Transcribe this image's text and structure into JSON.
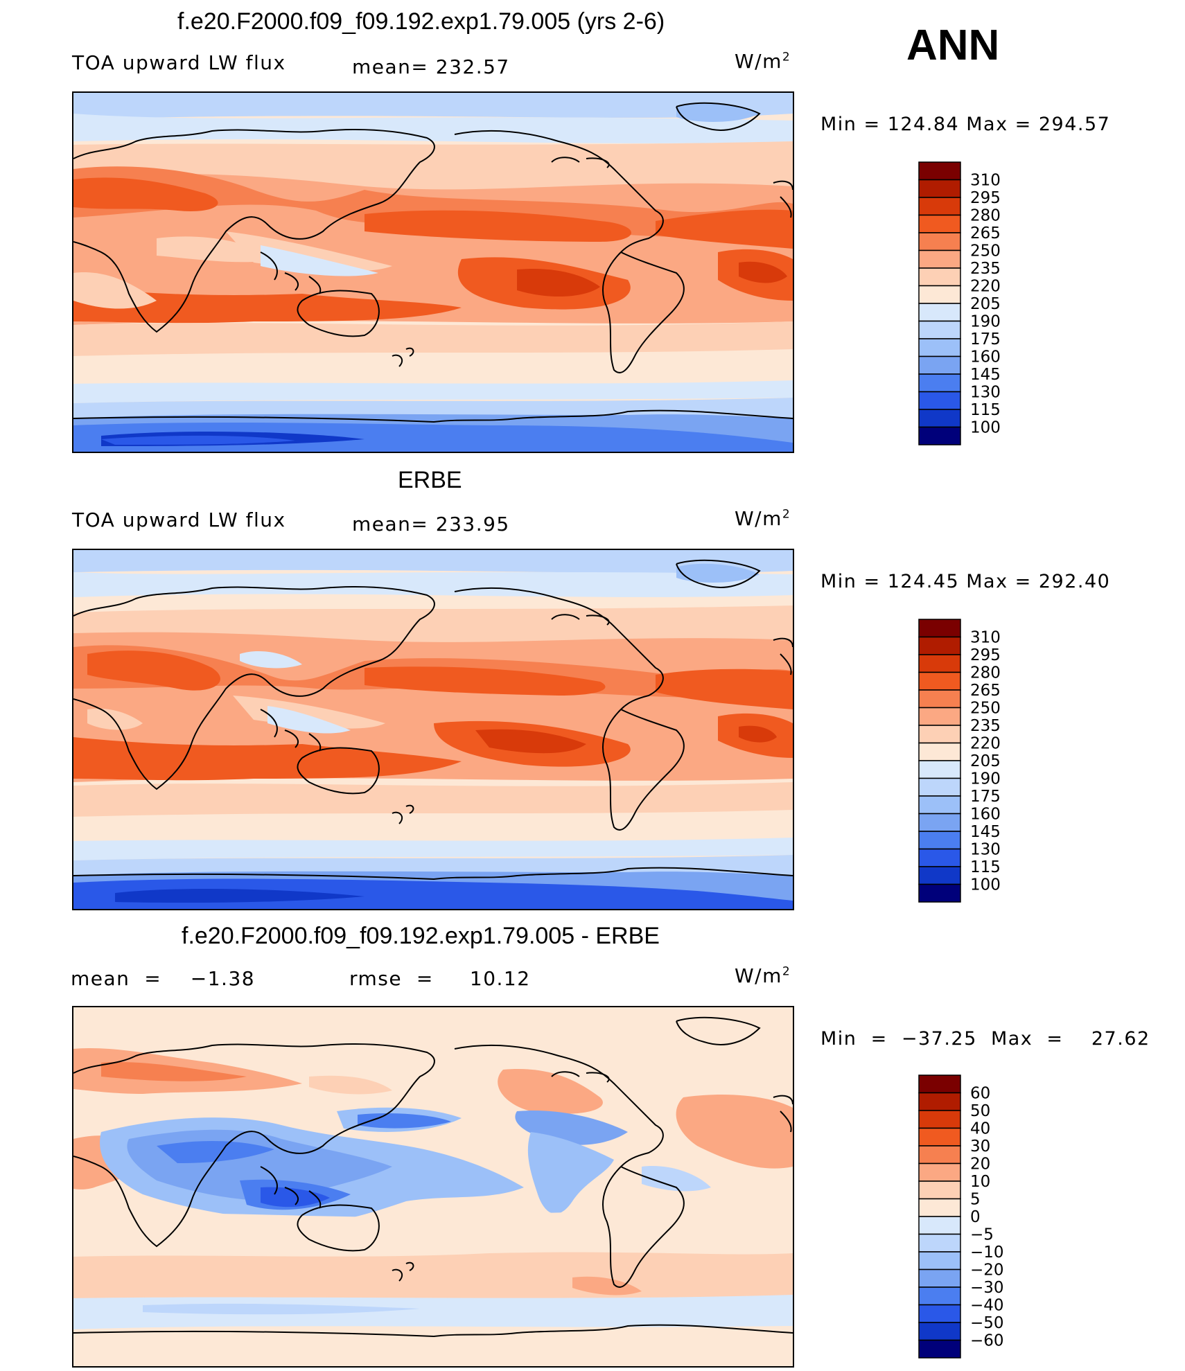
{
  "season": "ANN",
  "chart_data": [
    {
      "type": "heatmap",
      "title": "f.e20.F2000.f09_f09.192.exp1.79.005 (yrs 2-6)",
      "left_label": "TOA upward LW flux",
      "center_label": "mean=  232.57",
      "units_base": "W/m",
      "units_exp": "2",
      "minmax": "Min  =  124.84  Max  =  294.57",
      "mean": 232.57,
      "min": 124.84,
      "max": 294.57,
      "levels": [
        "310",
        "295",
        "280",
        "265",
        "250",
        "235",
        "220",
        "205",
        "190",
        "175",
        "160",
        "145",
        "130",
        "115",
        "100"
      ],
      "colors": [
        "#7a0000",
        "#b01c00",
        "#d83a0a",
        "#f05a20",
        "#f68050",
        "#fba883",
        "#fdd0b5",
        "#fde8d6",
        "#d8e8fb",
        "#bdd6fb",
        "#9cc0f8",
        "#7aa4f2",
        "#4b7ef0",
        "#2a58e8",
        "#1038c8",
        "#00007a"
      ]
    },
    {
      "type": "heatmap",
      "title": "ERBE",
      "left_label": "TOA upward LW flux",
      "center_label": "mean=  233.95",
      "units_base": "W/m",
      "units_exp": "2",
      "minmax": "Min  =  124.45  Max  =  292.40",
      "mean": 233.95,
      "min": 124.45,
      "max": 292.4,
      "levels": [
        "310",
        "295",
        "280",
        "265",
        "250",
        "235",
        "220",
        "205",
        "190",
        "175",
        "160",
        "145",
        "130",
        "115",
        "100"
      ],
      "colors": [
        "#7a0000",
        "#b01c00",
        "#d83a0a",
        "#f05a20",
        "#f68050",
        "#fba883",
        "#fdd0b5",
        "#fde8d6",
        "#d8e8fb",
        "#bdd6fb",
        "#9cc0f8",
        "#7aa4f2",
        "#4b7ef0",
        "#2a58e8",
        "#1038c8",
        "#00007a"
      ]
    },
    {
      "type": "heatmap",
      "title": "f.e20.F2000.f09_f09.192.exp1.79.005 - ERBE",
      "left_label": "mean  =    −1.38",
      "center_label": "rmse  =     10.12",
      "units_base": "W/m",
      "units_exp": "2",
      "minmax": "Min  =  −37.25  Max  =    27.62",
      "mean": -1.38,
      "rmse": 10.12,
      "min": -37.25,
      "max": 27.62,
      "levels": [
        "60",
        "50",
        "40",
        "30",
        "20",
        "10",
        "5",
        "0",
        "−5",
        "−10",
        "−20",
        "−30",
        "−40",
        "−50",
        "−60"
      ],
      "colors": [
        "#7a0000",
        "#b01c00",
        "#d83a0a",
        "#f05a20",
        "#f68050",
        "#fba883",
        "#fdd0b5",
        "#fde8d6",
        "#d8e8fb",
        "#bdd6fb",
        "#9cc0f8",
        "#7aa4f2",
        "#4b7ef0",
        "#2a58e8",
        "#1038c8",
        "#00007a"
      ]
    }
  ]
}
